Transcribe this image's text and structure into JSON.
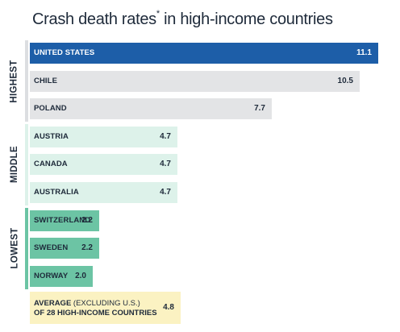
{
  "chart_data": {
    "type": "bar",
    "orientation": "horizontal",
    "title": "Crash death rates",
    "title_marker": "*",
    "groups": [
      {
        "label": "HIGHEST",
        "categories": [
          "UNITED STATES",
          "CHILE",
          "POLAND"
        ],
        "values": [
          11.1,
          10.5,
          7.7
        ]
      },
      {
        "label": "MIDDLE",
        "categories": [
          "AUSTRIA",
          "CANADA",
          "AUSTRALIA"
        ],
        "values": [
          4.7,
          4.7,
          4.7
        ]
      },
      {
        "label": "LOWEST",
        "categories": [
          "SWITZERLAND",
          "SWEDEN",
          "NORWAY"
        ],
        "values": [
          2.2,
          2.2,
          2.0
        ]
      }
    ],
    "average": {
      "label_bold": "AVERAGE",
      "label_light": "(EXCLUDING U.S.)",
      "label_line2": "OF 28 HIGH-INCOME COUNTRIES",
      "value": 4.8
    },
    "xlim": [
      0,
      11.1
    ],
    "colors": {
      "highlight": "#1d5ea8",
      "highest": "#e3e4e6",
      "middle": "#ddf2ea",
      "lowest": "#6cc4a4",
      "average": "#fbf2c2",
      "group_line_highest": "#dcdee1",
      "group_line_middle": "#ddf2ea",
      "group_line_lowest": "#6cc4a4"
    }
  },
  "title_main": "Crash death rates",
  "title_sup": "*",
  "title_rest": " in high-income countries"
}
